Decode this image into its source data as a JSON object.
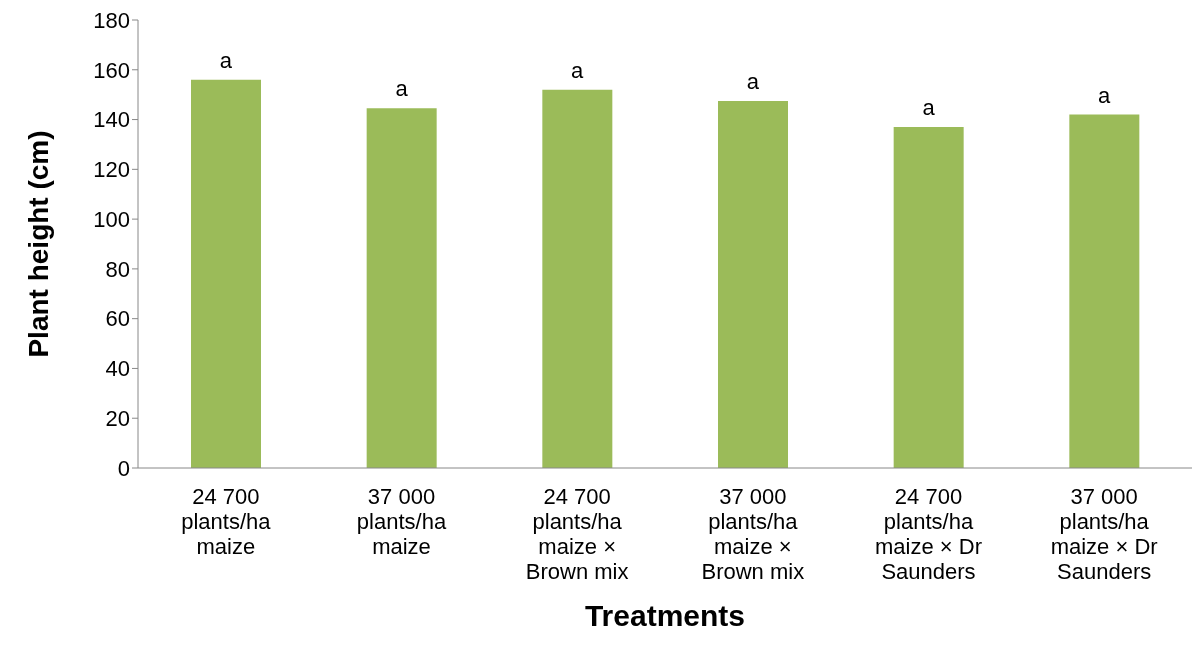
{
  "chart_data": {
    "type": "bar",
    "xlabel": "Treatments",
    "ylabel": "Plant height (cm)",
    "categories": [
      "24 700 plants/ha maize",
      "37 000 plants/ha maize",
      "24 700 plants/ha maize × Brown mix",
      "37 000 plants/ha maize × Brown mix",
      "24 700 plants/ha maize × Dr Saunders",
      "37 000 plants/ha maize × Dr Saunders"
    ],
    "values": [
      156,
      144.5,
      152,
      147.5,
      137,
      142
    ],
    "color": "#9bbb59",
    "ylim": [
      0,
      180
    ],
    "yticks": [
      0,
      20,
      40,
      60,
      80,
      100,
      120,
      140,
      160,
      180
    ],
    "grid": false,
    "annotations": [
      {
        "text": "a",
        "x": "24 700 plants/ha maize",
        "y": 156
      },
      {
        "text": "a",
        "x": "37 000 plants/ha maize",
        "y": 144.5
      },
      {
        "text": "a",
        "x": "24 700 plants/ha maize × Brown mix",
        "y": 152
      },
      {
        "text": "a",
        "x": "37 000 plants/ha maize × Brown mix",
        "y": 147.5
      },
      {
        "text": "a",
        "x": "24 700 plants/ha maize × Dr Saunders",
        "y": 137
      },
      {
        "text": "a",
        "x": "37 000 plants/ha maize × Dr Saunders",
        "y": 142
      }
    ]
  }
}
